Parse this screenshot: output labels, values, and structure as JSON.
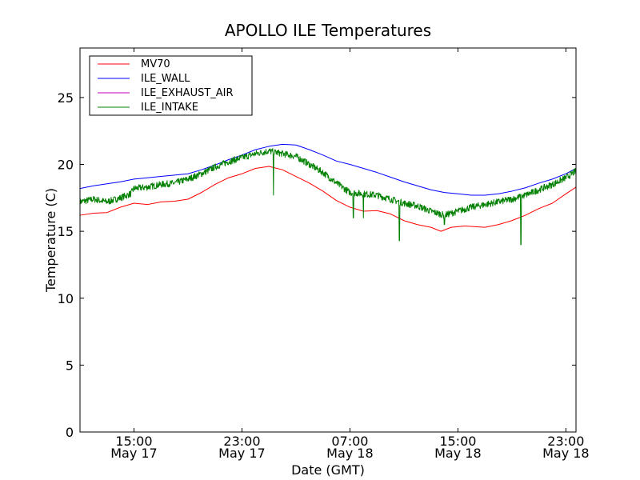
{
  "chart_data": {
    "type": "line",
    "title": "APOLLO ILE Temperatures",
    "xlabel": "Date (GMT)",
    "ylabel": "Temperature (C)",
    "xlim": [
      "2013-05-17 11:00",
      "2013-05-18 23:45"
    ],
    "ylim": [
      0,
      28.7
    ],
    "yticks": [
      0,
      5,
      10,
      15,
      20,
      25
    ],
    "xticks": [
      {
        "at": "2013-05-17 15:00",
        "time": "15:00",
        "date": "May 17"
      },
      {
        "at": "2013-05-17 23:00",
        "time": "23:00",
        "date": "May 17"
      },
      {
        "at": "2013-05-18 07:00",
        "time": "07:00",
        "date": "May 18"
      },
      {
        "at": "2013-05-18 15:00",
        "time": "15:00",
        "date": "May 18"
      },
      {
        "at": "2013-05-18 23:00",
        "time": "23:00",
        "date": "May 18"
      }
    ],
    "grid": false,
    "legend_position": "top-left",
    "series": [
      {
        "name": "MV70",
        "color": "#ff0000",
        "points": [
          [
            "2013-05-17 11:00",
            16.2
          ],
          [
            "2013-05-17 12:00",
            16.35
          ],
          [
            "2013-05-17 13:00",
            16.4
          ],
          [
            "2013-05-17 14:00",
            16.8
          ],
          [
            "2013-05-17 15:00",
            17.1
          ],
          [
            "2013-05-17 16:00",
            17.0
          ],
          [
            "2013-05-17 17:00",
            17.2
          ],
          [
            "2013-05-17 18:00",
            17.25
          ],
          [
            "2013-05-17 19:00",
            17.4
          ],
          [
            "2013-05-17 20:00",
            17.9
          ],
          [
            "2013-05-17 21:00",
            18.5
          ],
          [
            "2013-05-17 22:00",
            19.0
          ],
          [
            "2013-05-17 23:00",
            19.3
          ],
          [
            "2013-05-18 00:00",
            19.7
          ],
          [
            "2013-05-18 01:00",
            19.85
          ],
          [
            "2013-05-18 02:00",
            19.6
          ],
          [
            "2013-05-18 03:00",
            19.1
          ],
          [
            "2013-05-18 04:00",
            18.6
          ],
          [
            "2013-05-18 05:00",
            18.0
          ],
          [
            "2013-05-18 06:00",
            17.3
          ],
          [
            "2013-05-18 07:00",
            16.8
          ],
          [
            "2013-05-18 08:00",
            16.5
          ],
          [
            "2013-05-18 09:00",
            16.55
          ],
          [
            "2013-05-18 10:00",
            16.3
          ],
          [
            "2013-05-18 11:00",
            15.8
          ],
          [
            "2013-05-18 12:00",
            15.5
          ],
          [
            "2013-05-18 13:00",
            15.3
          ],
          [
            "2013-05-18 13:45",
            15.0
          ],
          [
            "2013-05-18 14:30",
            15.3
          ],
          [
            "2013-05-18 15:30",
            15.4
          ],
          [
            "2013-05-18 17:00",
            15.3
          ],
          [
            "2013-05-18 18:00",
            15.5
          ],
          [
            "2013-05-18 19:00",
            15.8
          ],
          [
            "2013-05-18 20:00",
            16.2
          ],
          [
            "2013-05-18 21:00",
            16.7
          ],
          [
            "2013-05-18 22:00",
            17.1
          ],
          [
            "2013-05-18 23:00",
            17.8
          ],
          [
            "2013-05-18 23:45",
            18.3
          ]
        ]
      },
      {
        "name": "ILE_WALL",
        "color": "#0000ff",
        "points": [
          [
            "2013-05-17 11:00",
            18.2
          ],
          [
            "2013-05-17 12:00",
            18.4
          ],
          [
            "2013-05-17 13:00",
            18.55
          ],
          [
            "2013-05-17 14:00",
            18.7
          ],
          [
            "2013-05-17 15:00",
            18.9
          ],
          [
            "2013-05-17 16:00",
            19.0
          ],
          [
            "2013-05-17 17:00",
            19.1
          ],
          [
            "2013-05-17 18:00",
            19.2
          ],
          [
            "2013-05-17 19:00",
            19.3
          ],
          [
            "2013-05-17 20:00",
            19.6
          ],
          [
            "2013-05-17 21:00",
            19.95
          ],
          [
            "2013-05-17 22:00",
            20.35
          ],
          [
            "2013-05-17 23:00",
            20.7
          ],
          [
            "2013-05-18 00:00",
            21.1
          ],
          [
            "2013-05-18 01:00",
            21.35
          ],
          [
            "2013-05-18 02:00",
            21.5
          ],
          [
            "2013-05-18 03:00",
            21.45
          ],
          [
            "2013-05-18 04:00",
            21.1
          ],
          [
            "2013-05-18 05:00",
            20.7
          ],
          [
            "2013-05-18 06:00",
            20.25
          ],
          [
            "2013-05-18 07:00",
            20.0
          ],
          [
            "2013-05-18 08:00",
            19.7
          ],
          [
            "2013-05-18 09:00",
            19.4
          ],
          [
            "2013-05-18 10:00",
            19.05
          ],
          [
            "2013-05-18 11:00",
            18.7
          ],
          [
            "2013-05-18 12:00",
            18.4
          ],
          [
            "2013-05-18 13:00",
            18.1
          ],
          [
            "2013-05-18 14:00",
            17.9
          ],
          [
            "2013-05-18 15:00",
            17.8
          ],
          [
            "2013-05-18 16:00",
            17.7
          ],
          [
            "2013-05-18 17:00",
            17.7
          ],
          [
            "2013-05-18 18:00",
            17.8
          ],
          [
            "2013-05-18 19:00",
            18.0
          ],
          [
            "2013-05-18 20:00",
            18.25
          ],
          [
            "2013-05-18 21:00",
            18.6
          ],
          [
            "2013-05-18 22:00",
            18.9
          ],
          [
            "2013-05-18 23:00",
            19.3
          ],
          [
            "2013-05-18 23:45",
            19.7
          ]
        ]
      },
      {
        "name": "ILE_EXHAUST_AIR",
        "color": "#bf00bf",
        "points": []
      },
      {
        "name": "ILE_INTAKE",
        "color": "#008000",
        "noise": 0.25,
        "points": [
          [
            "2013-05-17 11:00",
            17.2
          ],
          [
            "2013-05-17 12:00",
            17.4
          ],
          [
            "2013-05-17 13:00",
            17.2
          ],
          [
            "2013-05-17 14:00",
            17.5
          ],
          [
            "2013-05-17 14:45",
            17.8
          ],
          [
            "2013-05-17 15:00",
            18.2
          ],
          [
            "2013-05-17 16:00",
            18.3
          ],
          [
            "2013-05-17 17:00",
            18.5
          ],
          [
            "2013-05-17 18:00",
            18.6
          ],
          [
            "2013-05-17 19:00",
            18.9
          ],
          [
            "2013-05-17 20:00",
            19.3
          ],
          [
            "2013-05-17 21:00",
            19.8
          ],
          [
            "2013-05-17 22:00",
            20.2
          ],
          [
            "2013-05-17 23:00",
            20.5
          ],
          [
            "2013-05-18 00:00",
            20.8
          ],
          [
            "2013-05-18 01:00",
            21.0
          ],
          [
            "2013-05-18 02:00",
            20.8
          ],
          [
            "2013-05-18 03:00",
            20.6
          ],
          [
            "2013-05-18 04:00",
            20.0
          ],
          [
            "2013-05-18 05:00",
            19.4
          ],
          [
            "2013-05-18 06:00",
            18.6
          ],
          [
            "2013-05-18 07:00",
            17.9
          ],
          [
            "2013-05-18 08:00",
            17.8
          ],
          [
            "2013-05-18 09:00",
            17.7
          ],
          [
            "2013-05-18 10:00",
            17.4
          ],
          [
            "2013-05-18 11:00",
            17.1
          ],
          [
            "2013-05-18 12:00",
            16.9
          ],
          [
            "2013-05-18 13:00",
            16.5
          ],
          [
            "2013-05-18 14:00",
            16.2
          ],
          [
            "2013-05-18 15:00",
            16.5
          ],
          [
            "2013-05-18 16:00",
            16.8
          ],
          [
            "2013-05-18 17:00",
            17.0
          ],
          [
            "2013-05-18 18:00",
            17.2
          ],
          [
            "2013-05-18 19:00",
            17.4
          ],
          [
            "2013-05-18 20:00",
            17.7
          ],
          [
            "2013-05-18 21:00",
            18.1
          ],
          [
            "2013-05-18 22:00",
            18.5
          ],
          [
            "2013-05-18 23:00",
            19.0
          ],
          [
            "2013-05-18 23:45",
            19.5
          ]
        ],
        "spikes": [
          [
            "2013-05-18 01:20",
            17.7
          ],
          [
            "2013-05-18 07:15",
            16.0
          ],
          [
            "2013-05-18 08:00",
            16.0
          ],
          [
            "2013-05-18 10:40",
            14.3
          ],
          [
            "2013-05-18 14:00",
            15.5
          ],
          [
            "2013-05-18 19:40",
            14.0
          ]
        ]
      }
    ]
  }
}
